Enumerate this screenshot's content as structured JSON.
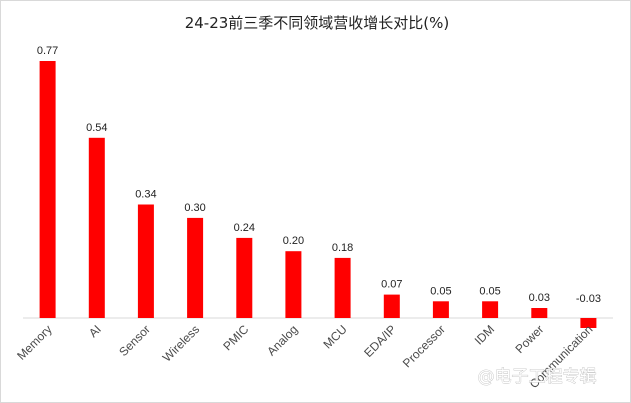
{
  "chart_data": {
    "type": "bar",
    "title": "24-23前三季不同领域营收增长对比(%)",
    "categories": [
      "Memory",
      "AI",
      "Sensor",
      "Wireless",
      "PMIC",
      "Analog",
      "MCU",
      "EDA/IP",
      "Processor",
      "IDM",
      "Power",
      "Communication"
    ],
    "values": [
      0.77,
      0.54,
      0.34,
      0.3,
      0.24,
      0.2,
      0.18,
      0.07,
      0.05,
      0.05,
      0.03,
      -0.03
    ],
    "value_labels": [
      "0.77",
      "0.54",
      "0.34",
      "0.30",
      "0.24",
      "0.20",
      "0.18",
      "0.07",
      "0.05",
      "0.05",
      "0.03",
      "-0.03"
    ],
    "xlabel": "",
    "ylabel": "",
    "ylim": [
      -0.03,
      0.77
    ],
    "grid": false,
    "legend": "none",
    "bar_color": "#ff0000",
    "axis_color": "#d9d9d9"
  },
  "watermark": {
    "text": "@电子工程专辑"
  }
}
